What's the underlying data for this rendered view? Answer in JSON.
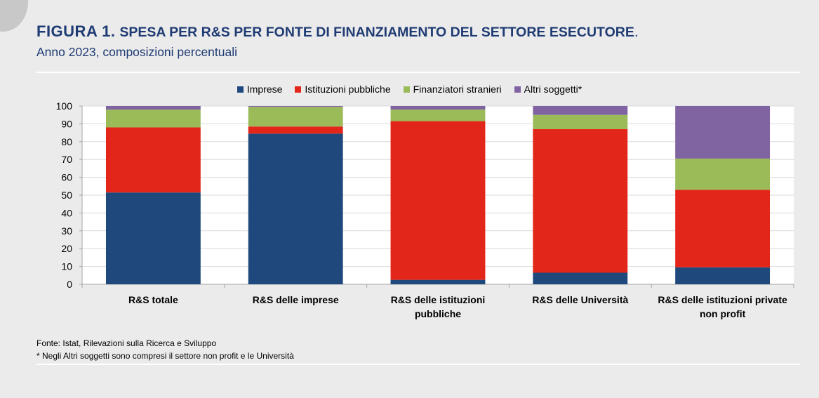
{
  "header": {
    "figure_label": "FIGURA 1.",
    "title": "SPESA PER R&S PER FONTE DI FINANZIAMENTO DEL SETTORE ESECUTORE",
    "title_end": ".",
    "subtitle": "Anno 2023, composizioni percentuali"
  },
  "chart_data": {
    "type": "bar",
    "stacked": true,
    "title": "SPESA PER R&S PER FONTE DI FINANZIAMENTO DEL SETTORE ESECUTORE",
    "ylim": [
      0,
      100
    ],
    "yticks": [
      0,
      10,
      20,
      30,
      40,
      50,
      60,
      70,
      80,
      90,
      100
    ],
    "grid": true,
    "legend_position": "top",
    "categories": [
      [
        "R&S totale"
      ],
      [
        "R&S delle imprese"
      ],
      [
        "R&S delle istituzioni",
        "pubbliche"
      ],
      [
        "R&S delle Università"
      ],
      [
        "R&S delle istituzioni private",
        "non profit"
      ]
    ],
    "series": [
      {
        "name": "Imprese",
        "color": "#1f497d",
        "values": [
          51.5,
          84.5,
          2.5,
          6.5,
          9.5
        ]
      },
      {
        "name": "Istituzioni pubbliche",
        "color": "#e3261a",
        "values": [
          36.5,
          4.0,
          89.0,
          80.5,
          43.5
        ]
      },
      {
        "name": "Finanziatori stranieri",
        "color": "#9bbb59",
        "values": [
          10.0,
          11.0,
          6.5,
          8.0,
          17.5
        ]
      },
      {
        "name": "Altri soggetti*",
        "color": "#8064a2",
        "values": [
          2.0,
          0.5,
          2.0,
          5.0,
          29.5
        ]
      }
    ]
  },
  "footer": {
    "source": "Fonte: Istat, Rilevazioni sulla Ricerca e Sviluppo",
    "note": "* Negli Altri soggetti sono compresi il settore non profit e le Università"
  }
}
